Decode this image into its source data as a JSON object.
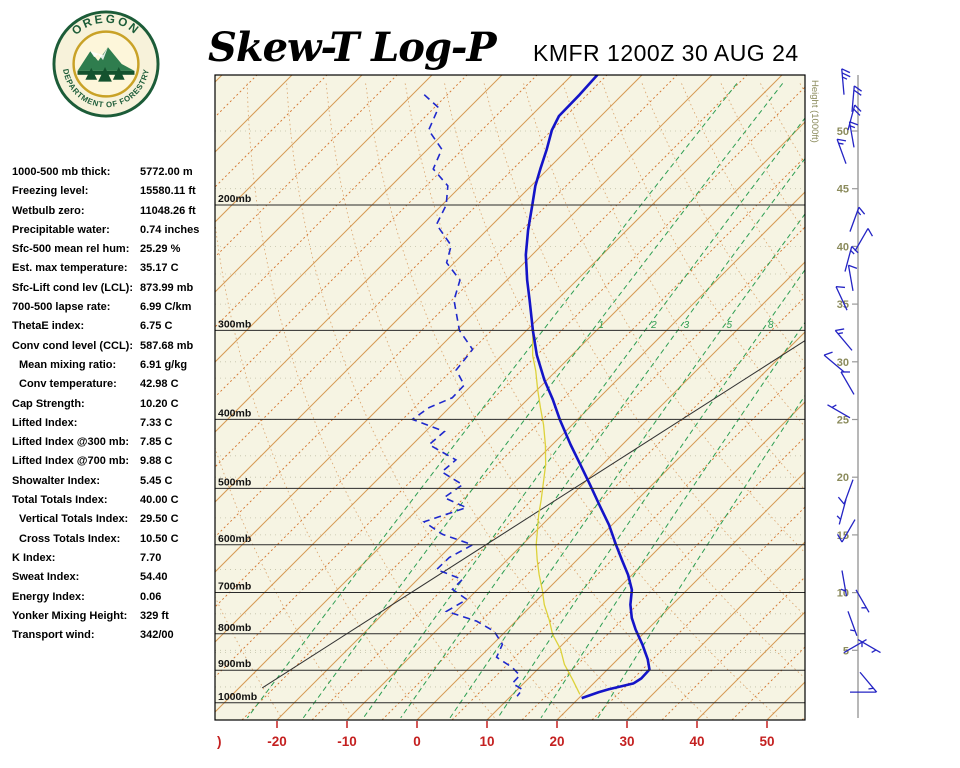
{
  "header": {
    "title": "Skew-T Log-P",
    "station": "KMFR 1200Z 30 AUG 24",
    "logo": {
      "top_text": "OREGON",
      "bottom_text": "DEPARTMENT OF FORESTRY"
    }
  },
  "indices": [
    {
      "label": "1000-500 mb thick:",
      "value": "5772.00 m",
      "indent": false
    },
    {
      "label": "Freezing level:",
      "value": "15580.11 ft",
      "indent": false
    },
    {
      "label": "Wetbulb zero:",
      "value": "11048.26 ft",
      "indent": false
    },
    {
      "label": "Precipitable water:",
      "value": "0.74 inches",
      "indent": false
    },
    {
      "label": "Sfc-500 mean rel hum:",
      "value": "25.29 %",
      "indent": false
    },
    {
      "label": "Est. max temperature:",
      "value": "35.17 C",
      "indent": false
    },
    {
      "label": "Sfc-Lift cond lev (LCL):",
      "value": "873.99 mb",
      "indent": false
    },
    {
      "label": "700-500 lapse rate:",
      "value": "6.99 C/km",
      "indent": false
    },
    {
      "label": "ThetaE index:",
      "value": "6.75 C",
      "indent": false
    },
    {
      "label": "Conv cond level (CCL):",
      "value": "587.68 mb",
      "indent": false
    },
    {
      "label": "Mean mixing ratio:",
      "value": "6.91 g/kg",
      "indent": true
    },
    {
      "label": "Conv temperature:",
      "value": "42.98 C",
      "indent": true
    },
    {
      "label": "Cap Strength:",
      "value": "10.20 C",
      "indent": false
    },
    {
      "label": "Lifted Index:",
      "value": "7.33 C",
      "indent": false
    },
    {
      "label": "Lifted Index @300 mb:",
      "value": "7.85 C",
      "indent": false
    },
    {
      "label": "Lifted Index @700 mb:",
      "value": "9.88 C",
      "indent": false
    },
    {
      "label": "Showalter Index:",
      "value": "5.45 C",
      "indent": false
    },
    {
      "label": "Total Totals Index:",
      "value": "40.00 C",
      "indent": false
    },
    {
      "label": "Vertical Totals Index:",
      "value": "29.50 C",
      "indent": true
    },
    {
      "label": "Cross Totals Index:",
      "value": "10.50 C",
      "indent": true
    },
    {
      "label": "K Index:",
      "value": "7.70",
      "indent": false
    },
    {
      "label": "Sweat Index:",
      "value": "54.40",
      "indent": false
    },
    {
      "label": "Energy Index:",
      "value": "0.06",
      "indent": false
    },
    {
      "label": "Yonker Mixing Height:",
      "value": "329 ft",
      "indent": false
    },
    {
      "label": "Transport wind:",
      "value": "342/00",
      "indent": false
    }
  ],
  "chart_data": {
    "type": "skewt-log-p",
    "title": "Skew-T Log-P",
    "station": "KMFR 1200Z 30 AUG 24",
    "pressure_levels": [
      200,
      300,
      400,
      500,
      600,
      700,
      800,
      900,
      1000
    ],
    "pressure_unit": "mb",
    "temp_axis": {
      "ticks": [
        -20,
        -10,
        0,
        10,
        20,
        30,
        40,
        50
      ],
      "edge_label": ")",
      "unit": "C",
      "color": "#c42020"
    },
    "height_axis": {
      "title": "Height (1000ft)",
      "ticks": [
        50,
        45,
        40,
        35,
        30,
        25,
        20,
        15,
        10,
        5
      ],
      "color": "#8b8b5c"
    },
    "mixing_ratio": {
      "values": [
        1,
        2,
        3,
        5,
        8
      ],
      "extra": [
        0.5,
        12,
        20
      ],
      "unit": "g/kg"
    },
    "colors": {
      "bg": "#f6f4e3",
      "isobar": "#2a2a2a",
      "minor": "#a0a080",
      "isotherm": "#d69a55",
      "isotherm_dot": "#d4742c",
      "adiabat": "#cf8640",
      "mixing": "#2d9e52",
      "barb": "#2424c4"
    },
    "temperature_profile": {
      "name": "Temperature (C) vs pressure (mb)",
      "color": "#1414c8",
      "points": [
        [
          131,
          -66.4
        ],
        [
          140,
          -66.1
        ],
        [
          150,
          -66
        ],
        [
          157,
          -65
        ],
        [
          167,
          -63
        ],
        [
          178,
          -61.1
        ],
        [
          188,
          -59.4
        ],
        [
          200,
          -57.1
        ],
        [
          217,
          -54.1
        ],
        [
          235,
          -50.9
        ],
        [
          255,
          -47.1
        ],
        [
          272,
          -43.9
        ],
        [
          300,
          -39.1
        ],
        [
          325,
          -35
        ],
        [
          352,
          -30.4
        ],
        [
          375,
          -26.4
        ],
        [
          401,
          -22.4
        ],
        [
          434,
          -17.4
        ],
        [
          464,
          -13
        ],
        [
          494,
          -8.9
        ],
        [
          528,
          -4.6
        ],
        [
          563,
          -0.4
        ],
        [
          600,
          3.4
        ],
        [
          630,
          6.4
        ],
        [
          661,
          9.4
        ],
        [
          694,
          12.1
        ],
        [
          728,
          14
        ],
        [
          760,
          16.1
        ],
        [
          789,
          18.3
        ],
        [
          828,
          21.4
        ],
        [
          869,
          24.3
        ],
        [
          898,
          26
        ],
        [
          924,
          26.1
        ],
        [
          939,
          25.7
        ],
        [
          948,
          24.4
        ],
        [
          957,
          23
        ],
        [
          966,
          22
        ],
        [
          979,
          20.9
        ],
        [
          985,
          20.4
        ]
      ]
    },
    "dewpoint_profile": {
      "name": "Dewpoint (C) vs pressure (mb)",
      "color": "#1e28cc",
      "points": [
        [
          140,
          -88.3
        ],
        [
          146,
          -84.4
        ],
        [
          157,
          -82.6
        ],
        [
          167,
          -78
        ],
        [
          178,
          -76.4
        ],
        [
          188,
          -71.9
        ],
        [
          200,
          -69.4
        ],
        [
          213,
          -68
        ],
        [
          228,
          -62.9
        ],
        [
          241,
          -61.1
        ],
        [
          255,
          -56.7
        ],
        [
          272,
          -54.7
        ],
        [
          300,
          -49.6
        ],
        [
          319,
          -45
        ],
        [
          341,
          -44.4
        ],
        [
          358,
          -41.1
        ],
        [
          373,
          -41
        ],
        [
          385,
          -42.9
        ],
        [
          400,
          -43.6
        ],
        [
          416,
          -37.3
        ],
        [
          434,
          -37.6
        ],
        [
          456,
          -31.6
        ],
        [
          474,
          -31.9
        ],
        [
          494,
          -27.1
        ],
        [
          515,
          -27.9
        ],
        [
          532,
          -23.3
        ],
        [
          557,
          -27.3
        ],
        [
          580,
          -22.9
        ],
        [
          600,
          -17.1
        ],
        [
          625,
          -18.6
        ],
        [
          650,
          -18.7
        ],
        [
          671,
          -13.6
        ],
        [
          693,
          -13.6
        ],
        [
          716,
          -10.1
        ],
        [
          744,
          -11.3
        ],
        [
          768,
          -5.6
        ],
        [
          794,
          -1.6
        ],
        [
          828,
          1.4
        ],
        [
          863,
          2.4
        ],
        [
          892,
          6.1
        ],
        [
          915,
          8.3
        ],
        [
          939,
          8.4
        ],
        [
          958,
          10.7
        ],
        [
          979,
          10.9
        ]
      ]
    },
    "parcel_profile": {
      "name": "Parcel / wet-bulb curve (C) vs pressure (mb)",
      "color": "#ddd23a",
      "points": [
        [
          294,
          -40.1
        ],
        [
          307,
          -38.1
        ],
        [
          325,
          -35.6
        ],
        [
          342,
          -32.9
        ],
        [
          363,
          -30
        ],
        [
          385,
          -27
        ],
        [
          407,
          -24.1
        ],
        [
          434,
          -21
        ],
        [
          463,
          -18.1
        ],
        [
          494,
          -15.6
        ],
        [
          519,
          -13.7
        ],
        [
          545,
          -11.9
        ],
        [
          571,
          -10
        ],
        [
          600,
          -8
        ],
        [
          630,
          -5.7
        ],
        [
          661,
          -3.3
        ],
        [
          694,
          -0.7
        ],
        [
          728,
          1.7
        ],
        [
          765,
          4.6
        ],
        [
          801,
          7.1
        ],
        [
          841,
          10.4
        ],
        [
          883,
          13.1
        ],
        [
          927,
          16.4
        ],
        [
          973,
          19.6
        ]
      ]
    },
    "reference_line": [
      [
        953,
        -26.7
      ],
      [
        308,
        1.4
      ]
    ],
    "winds": [
      {
        "p": 140,
        "dir": 355,
        "spd": 25,
        "xo": -6
      },
      {
        "p": 148,
        "dir": 5,
        "spd": 20,
        "xo": 2
      },
      {
        "p": 157,
        "dir": 15,
        "spd": 20,
        "xo": -2
      },
      {
        "p": 166,
        "dir": 350,
        "spd": 15,
        "xo": 4
      },
      {
        "p": 175,
        "dir": 340,
        "spd": 15,
        "xo": -4
      },
      {
        "p": 218,
        "dir": 20,
        "spd": 15,
        "xo": 0
      },
      {
        "p": 232,
        "dir": 30,
        "spd": 10,
        "xo": 5
      },
      {
        "p": 248,
        "dir": 15,
        "spd": 15,
        "xo": -5
      },
      {
        "p": 264,
        "dir": 350,
        "spd": 10,
        "xo": 3
      },
      {
        "p": 281,
        "dir": 335,
        "spd": 10,
        "xo": -3
      },
      {
        "p": 320,
        "dir": 320,
        "spd": 15,
        "xo": 2
      },
      {
        "p": 343,
        "dir": 310,
        "spd": 10,
        "xo": -6
      },
      {
        "p": 369,
        "dir": 330,
        "spd": 10,
        "xo": 4
      },
      {
        "p": 398,
        "dir": 300,
        "spd": 5,
        "xo": 0
      },
      {
        "p": 486,
        "dir": 200,
        "spd": 10,
        "xo": 3
      },
      {
        "p": 518,
        "dir": 195,
        "spd": 5,
        "xo": -4
      },
      {
        "p": 553,
        "dir": 210,
        "spd": 10,
        "xo": 5
      },
      {
        "p": 652,
        "dir": 170,
        "spd": 5,
        "xo": -8
      },
      {
        "p": 694,
        "dir": 150,
        "spd": 5,
        "xo": 6
      },
      {
        "p": 744,
        "dir": 160,
        "spd": 5,
        "xo": -2
      },
      {
        "p": 815,
        "dir": 120,
        "spd": 5,
        "xo": 8
      },
      {
        "p": 850,
        "dir": 60,
        "spd": 5,
        "xo": -6
      },
      {
        "p": 906,
        "dir": 140,
        "spd": 3,
        "xo": 10
      },
      {
        "p": 966,
        "dir": 90,
        "spd": 2,
        "xo": 0
      }
    ]
  }
}
